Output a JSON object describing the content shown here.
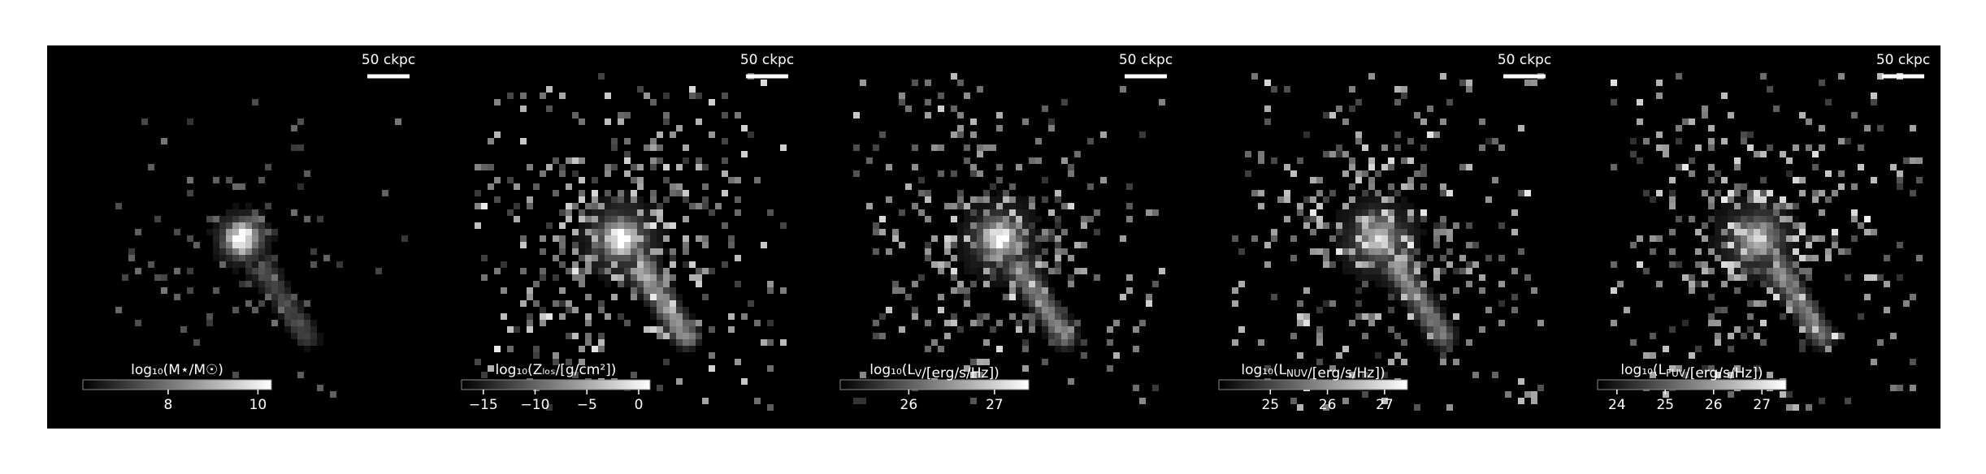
{
  "chart_data": [
    {
      "type": "image",
      "scale_bar_label": "50 ckpc",
      "colorbar_label": "log₁₀(M⋆/M☉)",
      "clim": [
        6.1,
        10.3
      ],
      "cticks": [
        8,
        10
      ]
    },
    {
      "type": "image",
      "scale_bar_label": "50 ckpc",
      "colorbar_label": "log₁₀(Zₗₒₛ/[g/cm²])",
      "clim": [
        -17.1,
        1.1
      ],
      "cticks": [
        {
          "value": -15,
          "label": "−15"
        },
        {
          "value": -10,
          "label": "−10"
        },
        {
          "value": -5,
          "label": "−5"
        },
        0
      ]
    },
    {
      "type": "image",
      "scale_bar_label": "50 ckpc",
      "colorbar_label": "log₁₀(L_V/[erg/s/Hz])",
      "clim": [
        25.2,
        27.4
      ],
      "cticks": [
        26,
        27
      ]
    },
    {
      "type": "image",
      "scale_bar_label": "50 ckpc",
      "colorbar_label": "log₁₀(L_NUV/[erg/s/Hz])",
      "clim": [
        24.1,
        27.4
      ],
      "cticks": [
        25,
        26,
        27
      ]
    },
    {
      "type": "image",
      "scale_bar_label": "50 ckpc",
      "colorbar_label": "log₁₀(L_FUV/[erg/s/Hz])",
      "clim": [
        23.6,
        27.5
      ],
      "cticks": [
        24,
        25,
        26,
        27
      ]
    }
  ]
}
